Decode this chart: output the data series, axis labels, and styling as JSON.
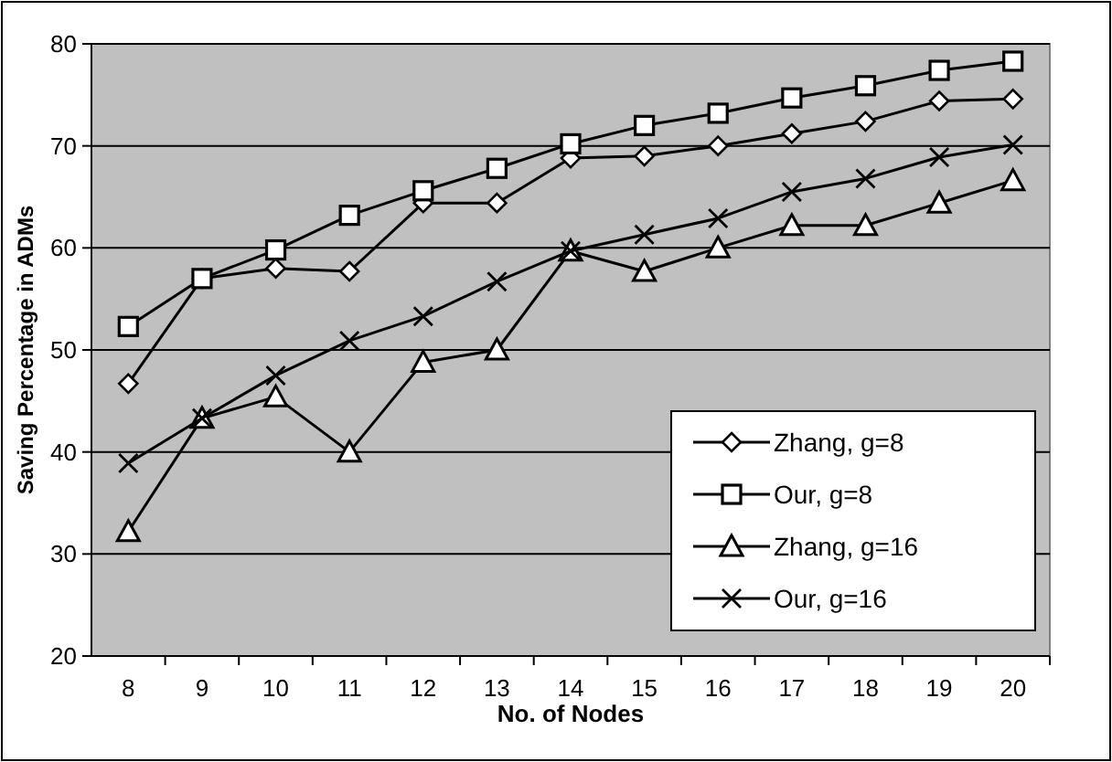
{
  "chart_data": {
    "type": "line",
    "xlabel": "No. of Nodes",
    "ylabel": "Saving Percentage in ADMs",
    "categories": [
      "8",
      "9",
      "10",
      "11",
      "12",
      "13",
      "14",
      "15",
      "16",
      "17",
      "18",
      "19",
      "20"
    ],
    "ylim": [
      20,
      80
    ],
    "yticks": [
      20,
      30,
      40,
      50,
      60,
      70,
      80
    ],
    "grid": "y",
    "legend": "bottom right",
    "series": [
      {
        "name": "Zhang, g=8",
        "color": "#000000",
        "marker": "diamond",
        "values": [
          46.7,
          57,
          58,
          57.7,
          64.4,
          64.4,
          68.8,
          69,
          70,
          71.2,
          72.4,
          74.4,
          74.6
        ]
      },
      {
        "name": "Our, g=8",
        "color": "#000000",
        "marker": "square",
        "values": [
          52.3,
          57,
          59.8,
          63.2,
          65.6,
          67.8,
          70.2,
          72,
          73.2,
          74.7,
          75.9,
          77.4,
          78.3
        ]
      },
      {
        "name": "Zhang, g=16",
        "color": "#000000",
        "marker": "triangle",
        "values": [
          32.2,
          43.3,
          45.4,
          40,
          48.8,
          50,
          59.7,
          57.7,
          60,
          62.2,
          62.2,
          64.4,
          66.6
        ]
      },
      {
        "name": "Our, g=16",
        "color": "#000000",
        "marker": "cross",
        "values": [
          38.9,
          43.3,
          47.5,
          50.9,
          53.3,
          56.7,
          59.7,
          61.3,
          62.9,
          65.5,
          66.8,
          68.9,
          70.1
        ]
      }
    ]
  }
}
